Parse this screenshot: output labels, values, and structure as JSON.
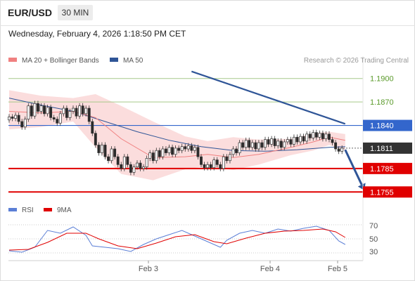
{
  "header": {
    "pair": "EUR/USD",
    "timeframe": "30 MIN"
  },
  "datetime": "Wednesday, February 4, 2026 1:18:50 PM CET",
  "legend": {
    "ma20": {
      "label": "MA 20 + Bollinger Bands",
      "color": "#f08080"
    },
    "ma50": {
      "label": "MA 50",
      "color": "#2f5597"
    }
  },
  "credit": "Research © 2026 Trading Central",
  "rsi_legend": {
    "rsi": {
      "label": "RSI",
      "color": "#5b7fd6"
    },
    "ma9": {
      "label": "9MA",
      "color": "#e00000"
    }
  },
  "xaxis": {
    "ticks": [
      "Feb 3",
      "Feb 4",
      "Feb 5"
    ]
  },
  "colors": {
    "up": "#3a3a3a",
    "down": "#2a2a2a",
    "band": "#fbd9d9",
    "trend": "#2f5597"
  },
  "chart_data": [
    {
      "type": "candlestick",
      "title": "",
      "ylim": [
        1.174,
        1.1915
      ],
      "levels": [
        {
          "value": 1.19,
          "label": "1.1900",
          "color": "#a6c98a",
          "style": "thin"
        },
        {
          "value": 1.187,
          "label": "1.1870",
          "color": "#a6c98a",
          "style": "thin"
        },
        {
          "value": 1.184,
          "label": "1.1840",
          "color": "#3366cc",
          "style": "line"
        },
        {
          "value": 1.1811,
          "label": "1.1811",
          "color": "#333333",
          "style": "last"
        },
        {
          "value": 1.1785,
          "label": "1.1785",
          "color": "#e00000",
          "style": "thick"
        },
        {
          "value": 1.1755,
          "label": "1.1755",
          "color": "#e00000",
          "style": "thick"
        }
      ],
      "trendline": {
        "from": {
          "bar": 57,
          "value": 1.1909
        },
        "to": {
          "bar": 105,
          "value": 1.1842
        }
      },
      "forecast_arrow": {
        "from": {
          "bar": 105,
          "value": 1.1809
        },
        "to": {
          "bar": 111,
          "value": 1.1757
        }
      },
      "candles": [
        [
          1.1847,
          1.1851
        ],
        [
          1.1851,
          1.1849
        ],
        [
          1.1849,
          1.1853
        ],
        [
          1.1853,
          1.1845
        ],
        [
          1.1845,
          1.1838
        ],
        [
          1.1838,
          1.1848
        ],
        [
          1.1848,
          1.1865
        ],
        [
          1.1865,
          1.1852
        ],
        [
          1.1852,
          1.1868
        ],
        [
          1.1868,
          1.1858
        ],
        [
          1.1858,
          1.1865
        ],
        [
          1.1865,
          1.1855
        ],
        [
          1.1855,
          1.1863
        ],
        [
          1.1863,
          1.185
        ],
        [
          1.185,
          1.1848
        ],
        [
          1.1848,
          1.1843
        ],
        [
          1.1843,
          1.1855
        ],
        [
          1.1855,
          1.1862
        ],
        [
          1.1862,
          1.185
        ],
        [
          1.185,
          1.1858
        ],
        [
          1.1858,
          1.1862
        ],
        [
          1.1862,
          1.1852
        ],
        [
          1.1852,
          1.1865
        ],
        [
          1.1865,
          1.1855
        ],
        [
          1.1855,
          1.1862
        ],
        [
          1.1862,
          1.1845
        ],
        [
          1.1845,
          1.183
        ],
        [
          1.183,
          1.1815
        ],
        [
          1.1815,
          1.1805
        ],
        [
          1.1805,
          1.1815
        ],
        [
          1.1815,
          1.18
        ],
        [
          1.18,
          1.1795
        ],
        [
          1.1795,
          1.181
        ],
        [
          1.181,
          1.18
        ],
        [
          1.18,
          1.179
        ],
        [
          1.179,
          1.1785
        ],
        [
          1.1785,
          1.18
        ],
        [
          1.18,
          1.179
        ],
        [
          1.179,
          1.178
        ],
        [
          1.178,
          1.1787
        ],
        [
          1.1787,
          1.1792
        ],
        [
          1.1792,
          1.1785
        ],
        [
          1.1785,
          1.1787
        ],
        [
          1.1787,
          1.1798
        ],
        [
          1.1798,
          1.1805
        ],
        [
          1.1805,
          1.1795
        ],
        [
          1.1795,
          1.1808
        ],
        [
          1.1808,
          1.18
        ],
        [
          1.18,
          1.181
        ],
        [
          1.181,
          1.1805
        ],
        [
          1.1805,
          1.1812
        ],
        [
          1.1812,
          1.1803
        ],
        [
          1.1803,
          1.1811
        ],
        [
          1.1811,
          1.1808
        ],
        [
          1.1808,
          1.1813
        ],
        [
          1.1813,
          1.181
        ],
        [
          1.181,
          1.1814
        ],
        [
          1.1814,
          1.1808
        ],
        [
          1.1808,
          1.1812
        ],
        [
          1.1812,
          1.18
        ],
        [
          1.18,
          1.179
        ],
        [
          1.179,
          1.1786
        ],
        [
          1.1786,
          1.179
        ],
        [
          1.179,
          1.1786
        ],
        [
          1.1786,
          1.1796
        ],
        [
          1.1796,
          1.179
        ],
        [
          1.179,
          1.1785
        ],
        [
          1.1785,
          1.18
        ],
        [
          1.18,
          1.1795
        ],
        [
          1.1795,
          1.1803
        ],
        [
          1.1803,
          1.181
        ],
        [
          1.181,
          1.1805
        ],
        [
          1.1805,
          1.1818
        ],
        [
          1.1818,
          1.1812
        ],
        [
          1.1812,
          1.1821
        ],
        [
          1.1821,
          1.1812
        ],
        [
          1.1812,
          1.1818
        ],
        [
          1.1818,
          1.181
        ],
        [
          1.181,
          1.1818
        ],
        [
          1.1818,
          1.1812
        ],
        [
          1.1812,
          1.1822
        ],
        [
          1.1822,
          1.1816
        ],
        [
          1.1816,
          1.1823
        ],
        [
          1.1823,
          1.1814
        ],
        [
          1.1814,
          1.182
        ],
        [
          1.182,
          1.1812
        ],
        [
          1.1812,
          1.1819
        ],
        [
          1.1819,
          1.1822
        ],
        [
          1.1822,
          1.1816
        ],
        [
          1.1816,
          1.1825
        ],
        [
          1.1825,
          1.1819
        ],
        [
          1.1819,
          1.1826
        ],
        [
          1.1826,
          1.182
        ],
        [
          1.182,
          1.1829
        ],
        [
          1.1829,
          1.1824
        ],
        [
          1.1824,
          1.1831
        ],
        [
          1.1831,
          1.1825
        ],
        [
          1.1825,
          1.183
        ],
        [
          1.183,
          1.1823
        ],
        [
          1.1823,
          1.1829
        ],
        [
          1.1829,
          1.1822
        ],
        [
          1.1822,
          1.1818
        ],
        [
          1.1818,
          1.181
        ],
        [
          1.181,
          1.1807
        ],
        [
          1.1807,
          1.1811
        ]
      ],
      "ma20": [
        [
          0,
          1.1858
        ],
        [
          10,
          1.1856
        ],
        [
          20,
          1.1858
        ],
        [
          27,
          1.185
        ],
        [
          35,
          1.1823
        ],
        [
          45,
          1.1799
        ],
        [
          55,
          1.18
        ],
        [
          62,
          1.1803
        ],
        [
          70,
          1.1799
        ],
        [
          78,
          1.1803
        ],
        [
          88,
          1.1812
        ],
        [
          95,
          1.1819
        ],
        [
          100,
          1.1825
        ],
        [
          105,
          1.1821
        ]
      ],
      "ma50": [
        [
          0,
          1.1875
        ],
        [
          10,
          1.1866
        ],
        [
          20,
          1.1858
        ],
        [
          30,
          1.1845
        ],
        [
          40,
          1.1832
        ],
        [
          50,
          1.1821
        ],
        [
          60,
          1.1813
        ],
        [
          70,
          1.1808
        ],
        [
          80,
          1.1807
        ],
        [
          90,
          1.1809
        ],
        [
          100,
          1.1812
        ],
        [
          105,
          1.1813
        ]
      ],
      "band_upper": [
        [
          0,
          1.1885
        ],
        [
          10,
          1.1878
        ],
        [
          20,
          1.1875
        ],
        [
          27,
          1.188
        ],
        [
          35,
          1.1865
        ],
        [
          45,
          1.1845
        ],
        [
          55,
          1.1826
        ],
        [
          62,
          1.182
        ],
        [
          70,
          1.1825
        ],
        [
          78,
          1.1822
        ],
        [
          88,
          1.1823
        ],
        [
          95,
          1.183
        ],
        [
          100,
          1.1832
        ],
        [
          105,
          1.1829
        ]
      ],
      "band_lower": [
        [
          0,
          1.1835
        ],
        [
          10,
          1.1838
        ],
        [
          20,
          1.1845
        ],
        [
          27,
          1.1812
        ],
        [
          35,
          1.1778
        ],
        [
          45,
          1.177
        ],
        [
          55,
          1.1784
        ],
        [
          62,
          1.1788
        ],
        [
          70,
          1.1783
        ],
        [
          78,
          1.179
        ],
        [
          88,
          1.1802
        ],
        [
          95,
          1.1808
        ],
        [
          100,
          1.1815
        ],
        [
          105,
          1.1808
        ]
      ]
    },
    {
      "type": "line",
      "title": "",
      "ylim": [
        20,
        80
      ],
      "yticks": [
        70,
        50,
        30
      ],
      "series": [
        {
          "name": "RSI",
          "values": [
            [
              0,
              33
            ],
            [
              4,
              31
            ],
            [
              8,
              38
            ],
            [
              12,
              62
            ],
            [
              16,
              58
            ],
            [
              20,
              67
            ],
            [
              24,
              55
            ],
            [
              26,
              40
            ],
            [
              30,
              38
            ],
            [
              34,
              36
            ],
            [
              38,
              32
            ],
            [
              42,
              42
            ],
            [
              46,
              50
            ],
            [
              50,
              56
            ],
            [
              54,
              62
            ],
            [
              58,
              54
            ],
            [
              62,
              46
            ],
            [
              66,
              38
            ],
            [
              68,
              48
            ],
            [
              72,
              58
            ],
            [
              76,
              62
            ],
            [
              80,
              58
            ],
            [
              84,
              64
            ],
            [
              88,
              61
            ],
            [
              92,
              65
            ],
            [
              96,
              68
            ],
            [
              100,
              62
            ],
            [
              103,
              47
            ],
            [
              105,
              42
            ]
          ]
        },
        {
          "name": "9MA",
          "values": [
            [
              0,
              34
            ],
            [
              6,
              35
            ],
            [
              12,
              45
            ],
            [
              18,
              58
            ],
            [
              24,
              58
            ],
            [
              28,
              50
            ],
            [
              34,
              40
            ],
            [
              40,
              36
            ],
            [
              46,
              44
            ],
            [
              52,
              53
            ],
            [
              58,
              56
            ],
            [
              64,
              46
            ],
            [
              68,
              43
            ],
            [
              74,
              51
            ],
            [
              80,
              58
            ],
            [
              86,
              61
            ],
            [
              92,
              62
            ],
            [
              98,
              64
            ],
            [
              102,
              60
            ],
            [
              105,
              52
            ]
          ]
        }
      ]
    }
  ]
}
